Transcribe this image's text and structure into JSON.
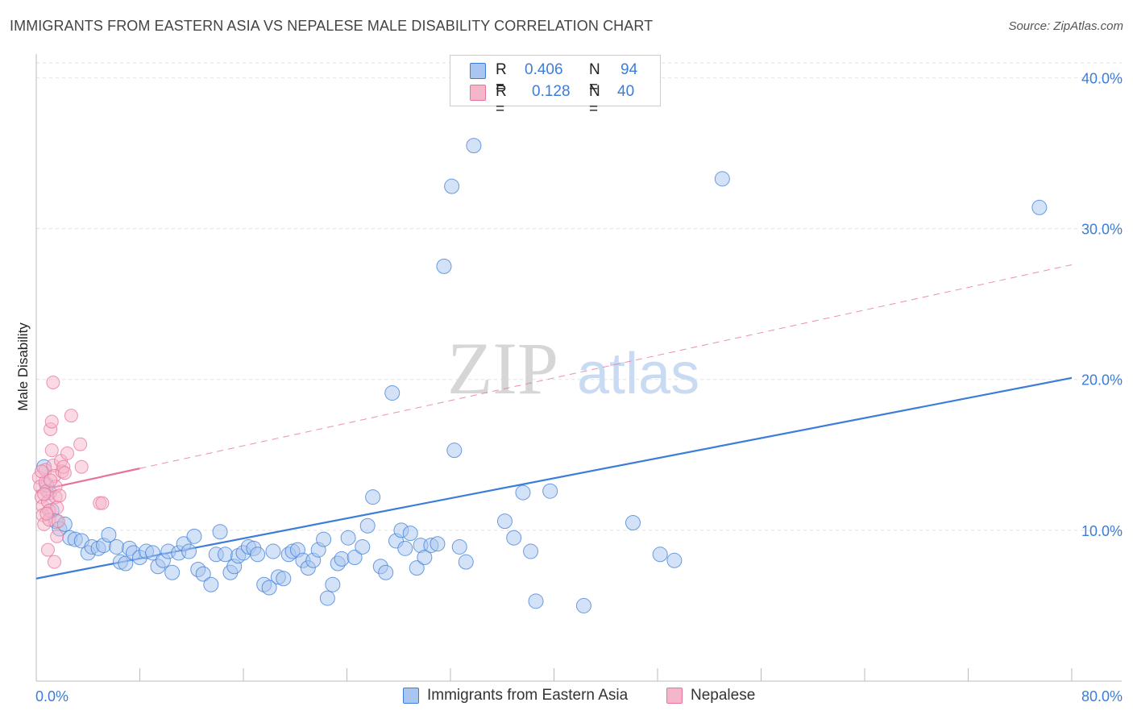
{
  "title": "IMMIGRANTS FROM EASTERN ASIA VS NEPALESE MALE DISABILITY CORRELATION CHART",
  "source": "Source: ZipAtlas.com",
  "watermark": {
    "zip": "ZIP",
    "atlas": "atlas"
  },
  "colors": {
    "blue": "#3b7dd8",
    "blue_fill": "#a9c6f0",
    "pink": "#e8739a",
    "pink_fill": "#f5b6ca"
  },
  "legend": {
    "rows": [
      {
        "r_label": "R = ",
        "r_value": "0.406",
        "n_label": "N = ",
        "n_value": "94"
      },
      {
        "r_label": "R = ",
        "r_value": "0.128",
        "n_label": "N = ",
        "n_value": "40"
      }
    ]
  },
  "bottom_legend": [
    "Immigrants from Eastern Asia",
    "Nepalese"
  ],
  "chart_data": {
    "type": "scatter",
    "title": "IMMIGRANTS FROM EASTERN ASIA VS NEPALESE MALE DISABILITY CORRELATION CHART",
    "xlabel": "",
    "ylabel": "Male Disability",
    "xlim": [
      0,
      80
    ],
    "ylim": [
      0,
      42
    ],
    "x_tick_labels": [
      "0.0%",
      "80.0%"
    ],
    "y_ticks": [
      10,
      20,
      30,
      40
    ],
    "y_tick_labels": [
      "10.0%",
      "20.0%",
      "30.0%",
      "40.0%"
    ],
    "series": [
      {
        "name": "Immigrants from Eastern Asia",
        "r": 0.406,
        "n": 94,
        "trend": {
          "x": [
            0,
            80
          ],
          "y": [
            6.8,
            20.1
          ],
          "style": "solid"
        },
        "points": [
          [
            0.6,
            14.2
          ],
          [
            0.8,
            13.0
          ],
          [
            1.0,
            12.5
          ],
          [
            1.2,
            11.3
          ],
          [
            1.5,
            10.6
          ],
          [
            1.8,
            10.1
          ],
          [
            2.2,
            10.4
          ],
          [
            2.6,
            9.5
          ],
          [
            3.0,
            9.4
          ],
          [
            3.5,
            9.3
          ],
          [
            4.0,
            8.5
          ],
          [
            4.3,
            8.9
          ],
          [
            4.8,
            8.8
          ],
          [
            5.2,
            9.0
          ],
          [
            5.6,
            9.7
          ],
          [
            6.2,
            8.9
          ],
          [
            6.5,
            7.9
          ],
          [
            6.9,
            7.8
          ],
          [
            7.2,
            8.8
          ],
          [
            7.5,
            8.5
          ],
          [
            8.0,
            8.2
          ],
          [
            8.5,
            8.6
          ],
          [
            9.0,
            8.5
          ],
          [
            9.4,
            7.6
          ],
          [
            9.8,
            8.0
          ],
          [
            10.2,
            8.6
          ],
          [
            10.5,
            7.2
          ],
          [
            11.0,
            8.5
          ],
          [
            11.4,
            9.1
          ],
          [
            11.8,
            8.6
          ],
          [
            12.2,
            9.6
          ],
          [
            12.5,
            7.4
          ],
          [
            12.9,
            7.1
          ],
          [
            13.5,
            6.4
          ],
          [
            13.9,
            8.4
          ],
          [
            14.2,
            9.9
          ],
          [
            14.6,
            8.4
          ],
          [
            15.0,
            7.2
          ],
          [
            15.3,
            7.6
          ],
          [
            15.6,
            8.3
          ],
          [
            16.0,
            8.5
          ],
          [
            16.4,
            8.9
          ],
          [
            16.8,
            8.8
          ],
          [
            17.1,
            8.4
          ],
          [
            17.6,
            6.4
          ],
          [
            18.0,
            6.2
          ],
          [
            18.3,
            8.6
          ],
          [
            18.7,
            6.9
          ],
          [
            19.1,
            6.8
          ],
          [
            19.5,
            8.4
          ],
          [
            19.8,
            8.6
          ],
          [
            20.2,
            8.7
          ],
          [
            20.6,
            8.0
          ],
          [
            21.0,
            7.5
          ],
          [
            21.4,
            8.0
          ],
          [
            21.8,
            8.7
          ],
          [
            22.2,
            9.4
          ],
          [
            22.5,
            5.5
          ],
          [
            22.9,
            6.4
          ],
          [
            23.3,
            7.8
          ],
          [
            23.6,
            8.1
          ],
          [
            24.1,
            9.5
          ],
          [
            24.6,
            8.2
          ],
          [
            25.2,
            8.9
          ],
          [
            25.6,
            10.3
          ],
          [
            26.0,
            12.2
          ],
          [
            26.6,
            7.6
          ],
          [
            27.0,
            7.2
          ],
          [
            27.5,
            19.1
          ],
          [
            27.8,
            9.3
          ],
          [
            28.2,
            10.0
          ],
          [
            28.5,
            8.8
          ],
          [
            28.9,
            9.8
          ],
          [
            29.4,
            7.5
          ],
          [
            29.7,
            9.0
          ],
          [
            30.0,
            8.2
          ],
          [
            30.5,
            9.0
          ],
          [
            31.0,
            9.1
          ],
          [
            31.5,
            27.5
          ],
          [
            32.1,
            32.8
          ],
          [
            32.3,
            15.3
          ],
          [
            32.7,
            8.9
          ],
          [
            33.2,
            7.9
          ],
          [
            33.8,
            35.5
          ],
          [
            36.2,
            10.6
          ],
          [
            36.9,
            9.5
          ],
          [
            37.6,
            12.5
          ],
          [
            38.2,
            8.6
          ],
          [
            38.6,
            5.3
          ],
          [
            39.7,
            12.6
          ],
          [
            42.3,
            5.0
          ],
          [
            46.1,
            10.5
          ],
          [
            48.2,
            8.4
          ],
          [
            49.3,
            8.0
          ],
          [
            53.0,
            33.3
          ],
          [
            77.5,
            31.4
          ]
        ]
      },
      {
        "name": "Nepalese",
        "r": 0.128,
        "n": 40,
        "trend": {
          "x": [
            0,
            8
          ],
          "y": [
            12.6,
            14.1
          ],
          "style": "solid",
          "extension_x": [
            8,
            80
          ],
          "extension_y": [
            14.1,
            27.6
          ],
          "extension_style": "dashed"
        },
        "points": [
          [
            0.2,
            13.5
          ],
          [
            0.3,
            12.9
          ],
          [
            0.4,
            12.2
          ],
          [
            0.5,
            11.6
          ],
          [
            0.5,
            11.0
          ],
          [
            0.6,
            10.4
          ],
          [
            0.7,
            14.0
          ],
          [
            0.7,
            13.2
          ],
          [
            0.8,
            12.6
          ],
          [
            0.9,
            11.9
          ],
          [
            1.0,
            11.3
          ],
          [
            1.0,
            10.7
          ],
          [
            1.1,
            16.7
          ],
          [
            1.2,
            15.3
          ],
          [
            1.3,
            14.3
          ],
          [
            1.4,
            13.6
          ],
          [
            1.5,
            12.9
          ],
          [
            1.5,
            12.2
          ],
          [
            1.6,
            11.5
          ],
          [
            1.7,
            10.6
          ],
          [
            0.9,
            8.7
          ],
          [
            1.4,
            7.9
          ],
          [
            1.6,
            9.6
          ],
          [
            1.9,
            14.6
          ],
          [
            2.0,
            13.9
          ],
          [
            2.1,
            14.2
          ],
          [
            2.4,
            15.1
          ],
          [
            2.7,
            17.6
          ],
          [
            3.4,
            15.7
          ],
          [
            3.5,
            14.2
          ],
          [
            1.2,
            17.2
          ],
          [
            1.3,
            19.8
          ],
          [
            4.9,
            11.8
          ],
          [
            5.1,
            11.8
          ],
          [
            0.4,
            13.9
          ],
          [
            0.6,
            12.4
          ],
          [
            0.8,
            11.1
          ],
          [
            1.1,
            13.3
          ],
          [
            1.8,
            12.3
          ],
          [
            2.2,
            13.8
          ]
        ]
      }
    ]
  }
}
